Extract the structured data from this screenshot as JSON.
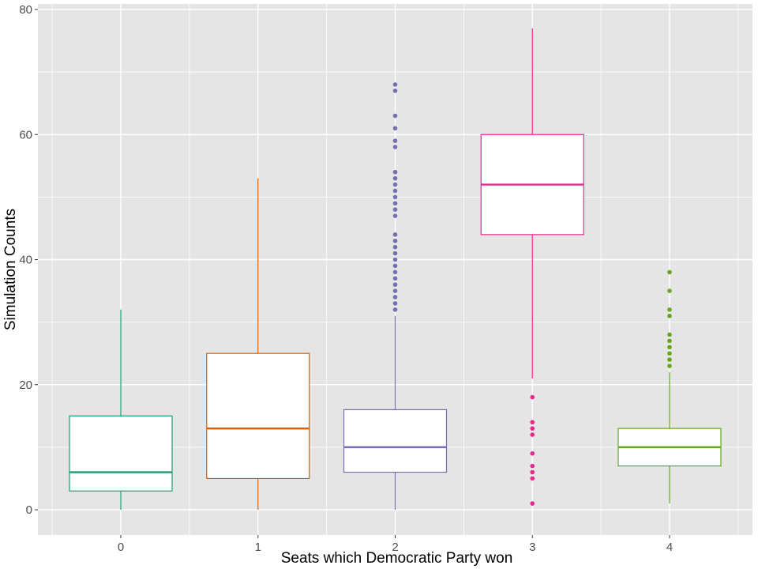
{
  "chart_data": {
    "type": "boxplot",
    "title": "",
    "xlabel": "Seats which Democratic Party won",
    "ylabel": "Simulation Counts",
    "categories": [
      "0",
      "1",
      "2",
      "3",
      "4"
    ],
    "ylim": [
      -4,
      81
    ],
    "yticks": [
      0,
      20,
      40,
      60,
      80
    ],
    "grid": true,
    "legend": "none",
    "panel_color": "#e5e5e5",
    "grid_color": "#ffffff",
    "boxes": [
      {
        "category": "0",
        "color": "#1b9e77",
        "whisker_low": 0,
        "q1": 3,
        "median": 6,
        "q3": 15,
        "whisker_high": 32,
        "outliers": []
      },
      {
        "category": "1",
        "color": "#d95f02",
        "whisker_low": 0,
        "q1": 5,
        "median": 13,
        "q3": 25,
        "whisker_high": 53,
        "outliers": []
      },
      {
        "category": "2",
        "color": "#7570b3",
        "whisker_low": 0,
        "q1": 6,
        "median": 10,
        "q3": 16,
        "whisker_high": 31,
        "outliers": [
          32,
          33,
          34,
          35,
          36,
          37,
          38,
          39,
          40,
          41,
          42,
          43,
          44,
          47,
          48,
          49,
          50,
          51,
          52,
          53,
          54,
          58,
          59,
          61,
          63,
          67,
          68
        ]
      },
      {
        "category": "3",
        "color": "#e7298a",
        "whisker_low": 21,
        "q1": 44,
        "median": 52,
        "q3": 60,
        "whisker_high": 77,
        "outliers": [
          1,
          5,
          6,
          7,
          9,
          12,
          13,
          14,
          18
        ]
      },
      {
        "category": "4",
        "color": "#66a61e",
        "whisker_low": 1,
        "q1": 7,
        "median": 10,
        "q3": 13,
        "whisker_high": 22,
        "outliers": [
          23,
          24,
          25,
          26,
          27,
          28,
          31,
          32,
          35,
          38
        ]
      }
    ]
  }
}
